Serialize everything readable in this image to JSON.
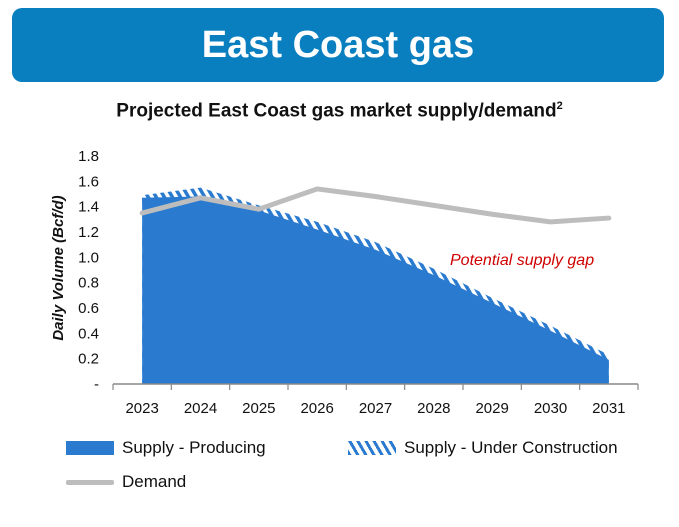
{
  "banner": {
    "title": "East Coast gas"
  },
  "chart_title": {
    "text": "Projected East Coast gas market supply/demand",
    "sup": "2"
  },
  "chart_data": {
    "type": "area",
    "title": "Projected East Coast gas market supply/demand",
    "ylabel": "Daily Volume (Bcf/d)",
    "xlabel": "",
    "categories": [
      "2023",
      "2024",
      "2025",
      "2026",
      "2027",
      "2028",
      "2029",
      "2030",
      "2031"
    ],
    "yticks": [
      "-",
      "0.2",
      "0.4",
      "0.6",
      "0.8",
      "1.0",
      "1.2",
      "1.4",
      "1.6",
      "1.8"
    ],
    "ylim": [
      0,
      1.8
    ],
    "grid": false,
    "legend_position": "bottom",
    "series": [
      {
        "name": "Supply - Producing",
        "type": "area",
        "color": "#2a7bd0",
        "values": [
          1.47,
          1.48,
          1.37,
          1.22,
          1.06,
          0.86,
          0.64,
          0.42,
          0.19
        ]
      },
      {
        "name": "Supply - Under Construction",
        "type": "area-hatched",
        "color": "#2a7bd0",
        "values": [
          1.49,
          1.55,
          1.41,
          1.28,
          1.12,
          0.91,
          0.68,
          0.46,
          0.23
        ]
      },
      {
        "name": "Demand",
        "type": "line",
        "color": "#bdbdbd",
        "values": [
          1.35,
          1.47,
          1.38,
          1.54,
          1.48,
          1.41,
          1.34,
          1.28,
          1.31
        ]
      }
    ],
    "annotations": [
      {
        "text": "Potential supply gap",
        "color": "#d00000"
      }
    ]
  },
  "legend": {
    "producing": "Supply - Producing",
    "under_construction": "Supply - Under Construction",
    "demand": "Demand"
  }
}
